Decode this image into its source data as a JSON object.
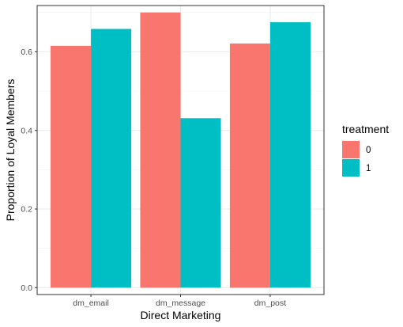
{
  "chart_data": {
    "type": "bar",
    "title": "",
    "xlabel": "Direct Marketing",
    "ylabel": "Proportion of Loyal Members",
    "categories": [
      "dm_email",
      "dm_message",
      "dm_post"
    ],
    "series": [
      {
        "name": "0",
        "values": [
          0.615,
          0.7,
          0.621
        ],
        "color": "#F8766D"
      },
      {
        "name": "1",
        "values": [
          0.658,
          0.431,
          0.675
        ],
        "color": "#00BFC4"
      }
    ],
    "ylim": [
      -0.0175,
      0.7175
    ],
    "yticks": [
      0.0,
      0.2,
      0.4,
      0.6
    ],
    "ytick_labels": [
      "0.0",
      "0.2",
      "0.4",
      "0.6"
    ],
    "grid": true,
    "legend": {
      "title": "treatment",
      "position": "right"
    }
  }
}
